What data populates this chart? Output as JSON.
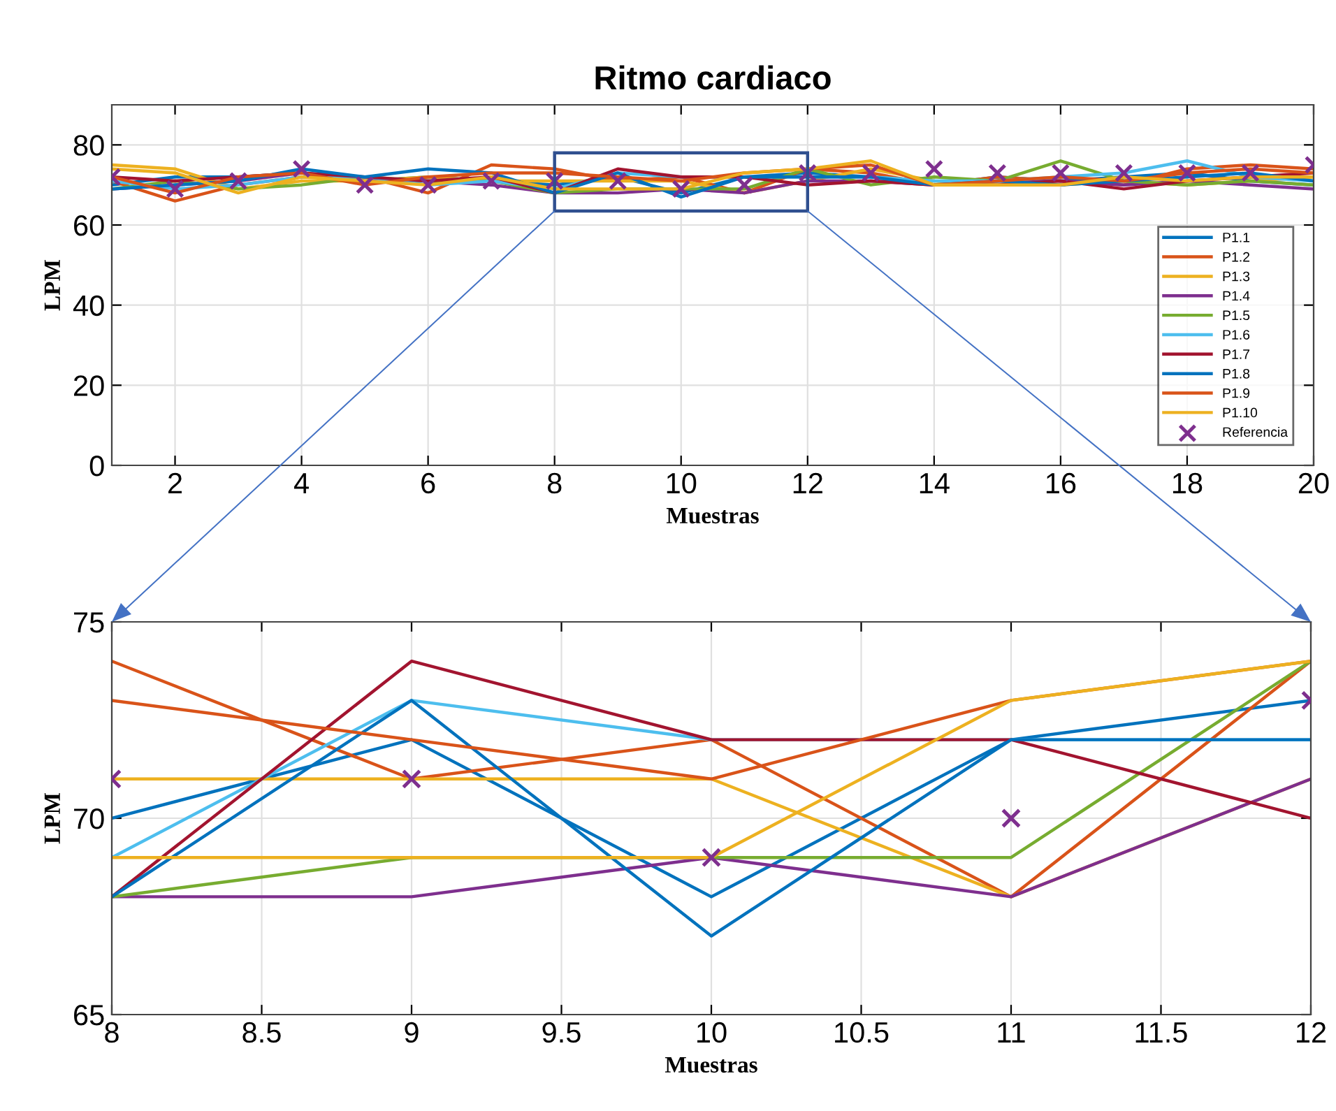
{
  "chart_data": [
    {
      "type": "line",
      "title": "Ritmo cardiaco",
      "xlabel": "Muestras",
      "ylabel": "LPM",
      "x": [
        1,
        2,
        3,
        4,
        5,
        6,
        7,
        8,
        9,
        10,
        11,
        12,
        13,
        14,
        15,
        16,
        17,
        18,
        19,
        20
      ],
      "xlim": [
        1,
        20
      ],
      "xticks": [
        2,
        4,
        6,
        8,
        10,
        12,
        14,
        16,
        18,
        20
      ],
      "ylim": [
        0,
        90
      ],
      "yticks": [
        0,
        20,
        40,
        60,
        80
      ],
      "grid": true,
      "legend": "bottom right",
      "line_style": "solid",
      "marker": "none",
      "series": [
        {
          "name": "P1.1",
          "color": "#0072bd",
          "values": [
            70,
            72,
            72,
            73,
            71,
            72,
            71,
            70,
            72,
            68,
            72,
            73,
            72,
            70,
            72,
            71,
            72,
            73,
            71,
            70
          ]
        },
        {
          "name": "P1.2",
          "color": "#d95319",
          "values": [
            71,
            66,
            70,
            72,
            72,
            68,
            75,
            74,
            71,
            72,
            68,
            74,
            73,
            70,
            72,
            71,
            70,
            74,
            75,
            74
          ]
        },
        {
          "name": "P1.3",
          "color": "#edb120",
          "values": [
            75,
            74,
            69,
            71,
            71,
            72,
            71,
            71,
            71,
            71,
            68,
            71,
            74,
            71,
            70,
            70,
            71,
            70,
            71,
            72
          ]
        },
        {
          "name": "P1.4",
          "color": "#7e2f8e",
          "values": [
            69,
            70,
            71,
            73,
            71,
            71,
            70,
            68,
            68,
            69,
            68,
            71,
            71,
            70,
            71,
            71,
            70,
            71,
            70,
            69
          ]
        },
        {
          "name": "P1.5",
          "color": "#77ac30",
          "values": [
            69,
            71,
            69,
            70,
            72,
            71,
            71,
            68,
            69,
            69,
            69,
            74,
            70,
            72,
            71,
            76,
            71,
            70,
            71,
            70
          ]
        },
        {
          "name": "P1.6",
          "color": "#4dbeee",
          "values": [
            71,
            69,
            70,
            72,
            72,
            70,
            71,
            69,
            73,
            72,
            72,
            72,
            72,
            71,
            71,
            72,
            73,
            76,
            72,
            71
          ]
        },
        {
          "name": "P1.7",
          "color": "#a2142f",
          "values": [
            72,
            71,
            72,
            73,
            72,
            71,
            72,
            68,
            74,
            72,
            72,
            70,
            71,
            70,
            70,
            71,
            69,
            71,
            72,
            73
          ]
        },
        {
          "name": "P1.8",
          "color": "#0072bd",
          "values": [
            69,
            70,
            71,
            74,
            72,
            74,
            73,
            68,
            73,
            67,
            72,
            72,
            72,
            70,
            71,
            70,
            71,
            72,
            73,
            71
          ]
        },
        {
          "name": "P1.9",
          "color": "#d95319",
          "values": [
            72,
            68,
            72,
            73,
            70,
            72,
            73,
            73,
            72,
            71,
            73,
            74,
            75,
            70,
            71,
            72,
            71,
            73,
            74,
            73
          ]
        },
        {
          "name": "P1.10",
          "color": "#edb120",
          "values": [
            74,
            73,
            68,
            72,
            71,
            70,
            72,
            69,
            69,
            69,
            73,
            74,
            76,
            70,
            70,
            70,
            72,
            71,
            72,
            72
          ]
        },
        {
          "name": "Referencia",
          "type": "scatter",
          "marker": "cross",
          "color": "#7e2f8e",
          "values": [
            72,
            69,
            71,
            74,
            70,
            70,
            71,
            71,
            71,
            69,
            70,
            73,
            73,
            74,
            73,
            73,
            73,
            73,
            73,
            75
          ]
        }
      ]
    },
    {
      "type": "line",
      "xlabel": "Muestras",
      "ylabel": "LPM",
      "x": [
        8,
        9,
        10,
        11,
        12
      ],
      "xlim": [
        8,
        12
      ],
      "xticks": [
        8,
        8.5,
        9,
        9.5,
        10,
        10.5,
        11,
        11.5,
        12
      ],
      "ylim": [
        65,
        75
      ],
      "yticks": [
        65,
        70,
        75
      ],
      "grid": true,
      "line_style": "solid",
      "marker": "none",
      "series": [
        {
          "color": "#0072bd",
          "values": [
            70,
            72,
            68,
            72,
            73
          ]
        },
        {
          "color": "#d95319",
          "values": [
            74,
            71,
            72,
            68,
            74
          ]
        },
        {
          "color": "#edb120",
          "values": [
            71,
            71,
            71,
            68,
            71
          ]
        },
        {
          "color": "#7e2f8e",
          "values": [
            68,
            68,
            69,
            68,
            71
          ]
        },
        {
          "color": "#77ac30",
          "values": [
            68,
            69,
            69,
            69,
            74
          ]
        },
        {
          "color": "#4dbeee",
          "values": [
            69,
            73,
            72,
            72,
            72
          ]
        },
        {
          "color": "#a2142f",
          "values": [
            68,
            74,
            72,
            72,
            70
          ]
        },
        {
          "color": "#0072bd",
          "values": [
            68,
            73,
            67,
            72,
            72
          ]
        },
        {
          "color": "#d95319",
          "values": [
            73,
            72,
            71,
            73,
            74
          ]
        },
        {
          "color": "#edb120",
          "values": [
            69,
            69,
            69,
            73,
            74
          ]
        },
        {
          "type": "scatter",
          "marker": "cross",
          "color": "#7e2f8e",
          "values": [
            71,
            71,
            69,
            70,
            73
          ]
        }
      ]
    }
  ]
}
